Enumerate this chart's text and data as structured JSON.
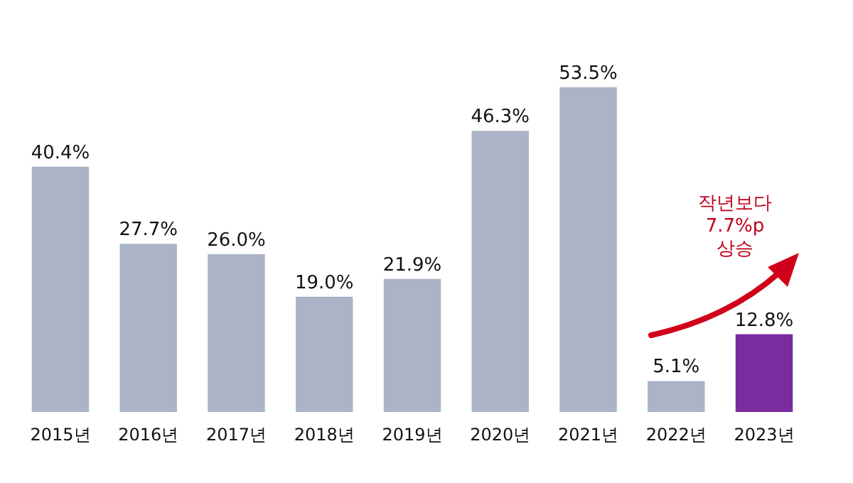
{
  "chart_data": {
    "type": "bar",
    "categories": [
      "2015년",
      "2016년",
      "2017년",
      "2018년",
      "2019년",
      "2020년",
      "2021년",
      "2022년",
      "2023년"
    ],
    "values": [
      40.4,
      27.7,
      26.0,
      19.0,
      21.9,
      46.3,
      53.5,
      5.1,
      12.8
    ],
    "colors": [
      "#aab4c6",
      "#aab4c6",
      "#aab4c6",
      "#aab4c6",
      "#aab4c6",
      "#aab4c6",
      "#aab4c6",
      "#aab4c6",
      "#7a2c9e"
    ],
    "value_labels": [
      "40.4%",
      "27.7%",
      "26.0%",
      "19.0%",
      "21.9%",
      "46.3%",
      "53.5%",
      "5.1%",
      "12.8%"
    ],
    "annotations": [
      "작년보다\n7.7%p\n상승"
    ]
  }
}
